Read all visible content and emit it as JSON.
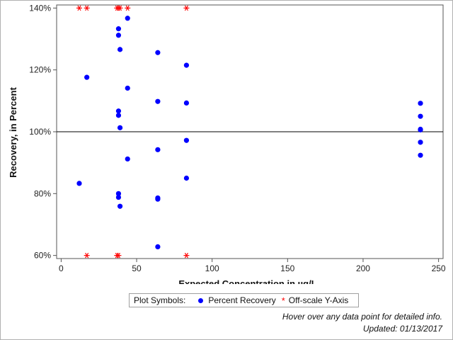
{
  "chart_data": {
    "type": "scatter",
    "xlabel": "Expected Concentration in µg/L",
    "ylabel": "Recovery, in Percent",
    "xlim": [
      -3,
      253
    ],
    "ylim": [
      59,
      141
    ],
    "x_ticks": [
      0,
      50,
      100,
      150,
      200,
      250
    ],
    "y_ticks": [
      60,
      80,
      100,
      120,
      140
    ],
    "y_tick_labels": [
      "60%",
      "80%",
      "100%",
      "120%",
      "140%"
    ],
    "reference_line_y": 100,
    "grid": false,
    "legend_placement": "bottom-center",
    "series": [
      {
        "name": "Percent Recovery",
        "marker": "circle",
        "color": "#0000ff",
        "points": [
          [
            12,
            83.3
          ],
          [
            17,
            117.6
          ],
          [
            38,
            133.3
          ],
          [
            38,
            131.2
          ],
          [
            38,
            106.7
          ],
          [
            38,
            105.3
          ],
          [
            38,
            80.0
          ],
          [
            38,
            78.8
          ],
          [
            39,
            126.6
          ],
          [
            39,
            101.3
          ],
          [
            39,
            75.9
          ],
          [
            44,
            136.7
          ],
          [
            44,
            114.1
          ],
          [
            44,
            91.2
          ],
          [
            64,
            125.6
          ],
          [
            64,
            109.8
          ],
          [
            64,
            94.2
          ],
          [
            64,
            78.6
          ],
          [
            64,
            78.2
          ],
          [
            64,
            62.8
          ],
          [
            83,
            121.5
          ],
          [
            83,
            109.3
          ],
          [
            83,
            97.2
          ],
          [
            83,
            85.0
          ],
          [
            238,
            109.2
          ],
          [
            238,
            105.0
          ],
          [
            238,
            100.8
          ],
          [
            238,
            100.6
          ],
          [
            238,
            96.6
          ],
          [
            238,
            92.4
          ]
        ]
      },
      {
        "name": "Off-scale Y-Axis",
        "marker": "star",
        "color": "#ff0000",
        "points": [
          [
            12,
            140
          ],
          [
            17,
            140
          ],
          [
            37,
            140
          ],
          [
            38,
            140
          ],
          [
            39,
            140
          ],
          [
            44,
            140
          ],
          [
            83,
            140
          ],
          [
            17,
            60
          ],
          [
            37,
            60
          ],
          [
            38,
            60
          ],
          [
            83,
            60
          ]
        ]
      }
    ]
  },
  "legend": {
    "title": "Plot Symbols:",
    "items": [
      "Percent Recovery",
      "Off-scale Y-Axis"
    ]
  },
  "footnotes": {
    "hover": "Hover over any data point for detailed info.",
    "updated": "Updated: 01/13/2017"
  },
  "colors": {
    "point": "#0000ff",
    "offscale": "#ff0000",
    "axis": "#555555",
    "reference": "#000000"
  }
}
